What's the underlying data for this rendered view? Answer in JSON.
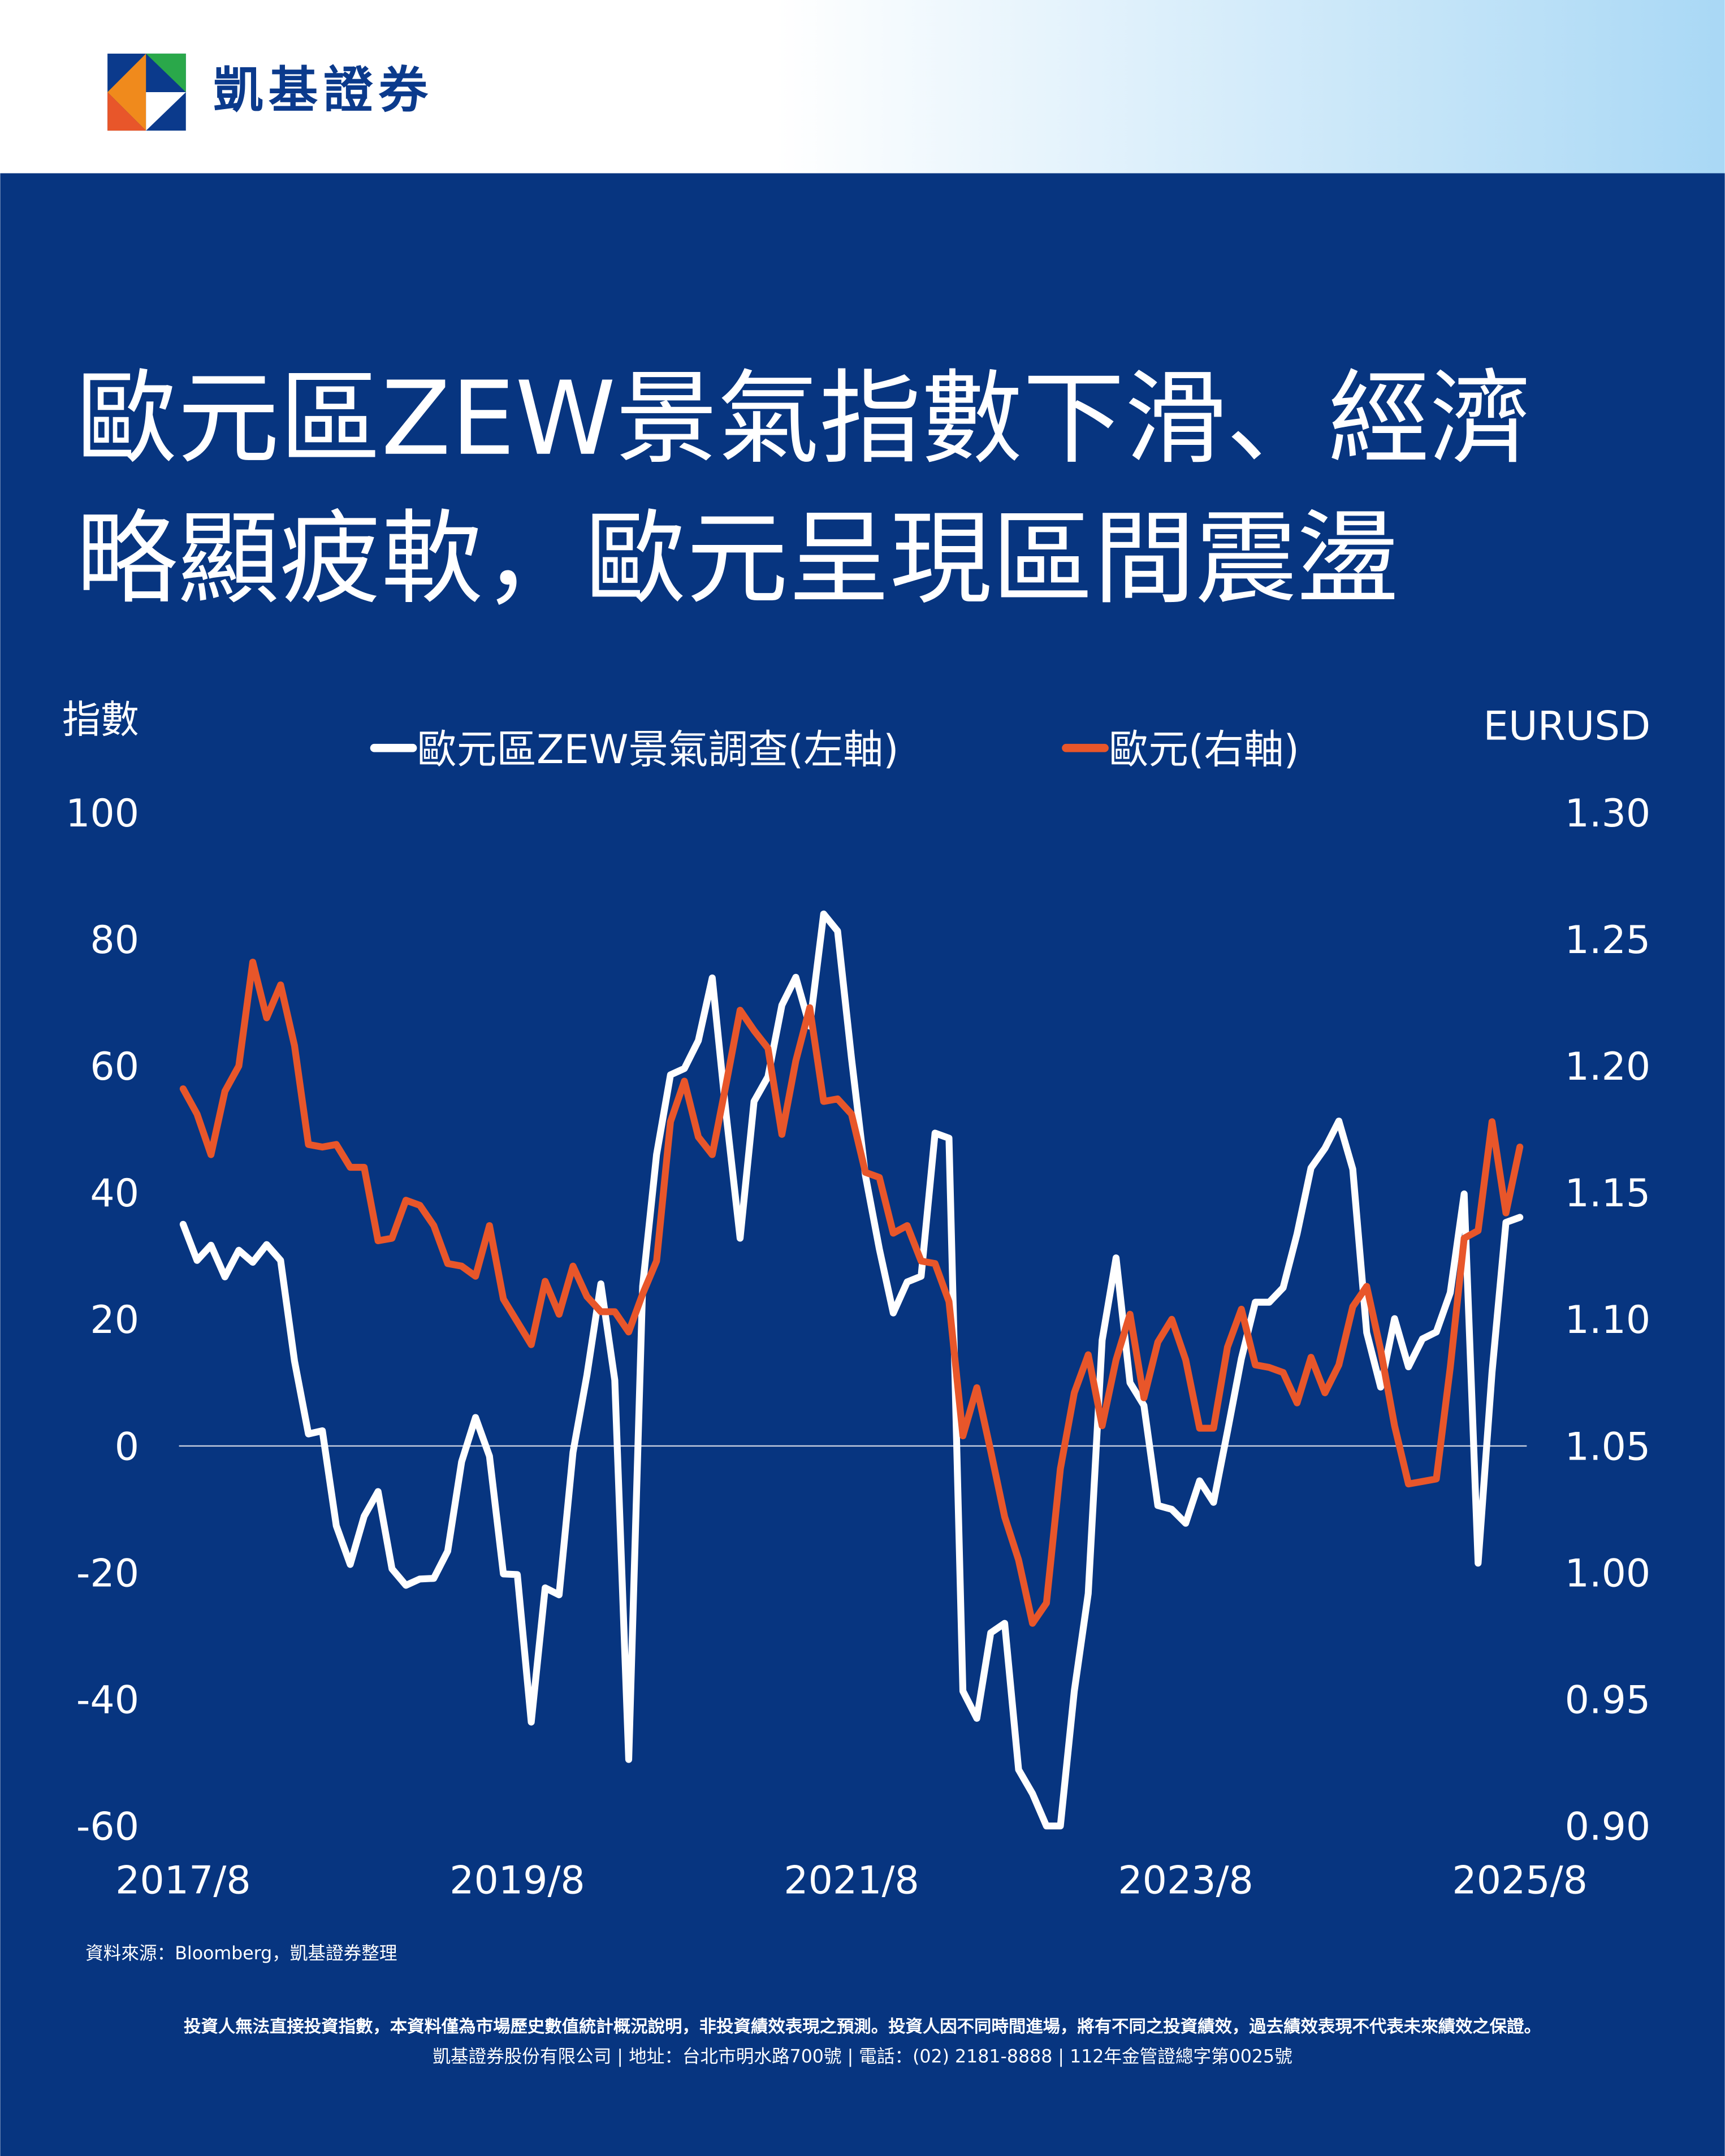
{
  "header": {
    "brand": "凱基證券"
  },
  "chart_data": {
    "type": "line",
    "title": [
      "歐元區ZEW景氣指數下滑、經濟",
      "略顯疲軟，歐元呈現區間震盪"
    ],
    "ylabel": "指數",
    "y2label": "EURUSD",
    "categories": [
      "2017/8",
      null,
      null,
      null,
      null,
      null,
      null,
      null,
      null,
      null,
      null,
      null,
      null,
      null,
      null,
      null,
      null,
      null,
      null,
      null,
      null,
      null,
      null,
      null,
      "2019/8",
      null,
      null,
      null,
      null,
      null,
      null,
      null,
      null,
      null,
      null,
      null,
      null,
      null,
      null,
      null,
      null,
      null,
      null,
      null,
      null,
      null,
      null,
      null,
      "2021/8",
      null,
      null,
      null,
      null,
      null,
      null,
      null,
      null,
      null,
      null,
      null,
      null,
      null,
      null,
      null,
      null,
      null,
      null,
      null,
      null,
      null,
      null,
      null,
      "2023/8",
      null,
      null,
      null,
      null,
      null,
      null,
      null,
      null,
      null,
      null,
      null,
      null,
      null,
      null,
      null,
      null,
      null,
      null,
      null,
      null,
      null,
      null,
      null,
      "2025/8"
    ],
    "series": [
      {
        "name": "歐元區ZEW景氣調查(左軸)",
        "color": "#ffffff",
        "axis": "y",
        "values": [
          35,
          29.3,
          31.7,
          26.7,
          30.9,
          29.0,
          31.8,
          29.3,
          13.4,
          1.9,
          2.4,
          -12.6,
          -18.7,
          -11.1,
          -7.2,
          -19.4,
          -22.0,
          -21.0,
          -20.9,
          -16.6,
          -2.5,
          4.5,
          -1.6,
          -20.2,
          -20.3,
          -43.6,
          -22.4,
          -23.5,
          -1.0,
          11.2,
          25.6,
          10.4,
          -49.5,
          25.2,
          46.0,
          58.6,
          59.6,
          64.0,
          73.9,
          52.3,
          32.8,
          54.4,
          58.3,
          69.6,
          74.0,
          66.3,
          84.0,
          81.3,
          61.2,
          42.7,
          31.1,
          21.0,
          25.9,
          26.8,
          49.4,
          48.6,
          -38.7,
          -43.0,
          -29.5,
          -28.0,
          -51.1,
          -54.9,
          -60,
          -60,
          -38.7,
          -23.3,
          16.7,
          29.7,
          10.0,
          6.4,
          -9.4,
          -10.0,
          -12.2,
          -5.5,
          -8.9,
          2.3,
          13.8,
          22.7,
          22.7,
          25.0,
          33.5,
          43.9,
          47.0,
          51.3,
          43.7,
          17.9,
          9.3,
          20.1,
          12.5,
          16.9,
          18.0,
          24.2,
          39.8,
          -18.5,
          11.6,
          35.3,
          36.1
        ]
      },
      {
        "name": "歐元(右軸)",
        "color": "#e8562a",
        "axis": "y2",
        "values": [
          1.191,
          1.181,
          1.165,
          1.19,
          1.2,
          1.241,
          1.219,
          1.232,
          1.208,
          1.169,
          1.168,
          1.169,
          1.16,
          1.16,
          1.131,
          1.132,
          1.147,
          1.145,
          1.137,
          1.122,
          1.121,
          1.117,
          1.137,
          1.108,
          1.099,
          1.09,
          1.115,
          1.102,
          1.121,
          1.109,
          1.103,
          1.103,
          1.095,
          1.11,
          1.123,
          1.178,
          1.194,
          1.172,
          1.165,
          1.193,
          1.222,
          1.214,
          1.207,
          1.173,
          1.202,
          1.223,
          1.186,
          1.187,
          1.181,
          1.158,
          1.156,
          1.134,
          1.137,
          1.123,
          1.122,
          1.107,
          1.054,
          1.073,
          1.048,
          1.022,
          1.005,
          0.98,
          0.988,
          1.041,
          1.071,
          1.086,
          1.058,
          1.084,
          1.102,
          1.069,
          1.091,
          1.1,
          1.084,
          1.057,
          1.057,
          1.089,
          1.104,
          1.082,
          1.081,
          1.079,
          1.067,
          1.085,
          1.071,
          1.082,
          1.105,
          1.113,
          1.088,
          1.058,
          1.035,
          1.036,
          1.037,
          1.081,
          1.132,
          1.135,
          1.178,
          1.142,
          1.168
        ]
      }
    ],
    "ylim": [
      -60,
      100
    ],
    "yticks": [
      100,
      80,
      60,
      40,
      20,
      0,
      -20,
      -40,
      -60
    ],
    "y2lim": [
      0.9,
      1.3
    ],
    "y2ticks": [
      {
        "value": 1.3,
        "label": "1.30"
      },
      {
        "value": 1.25,
        "label": "1.25"
      },
      {
        "value": 1.2,
        "label": "1.20"
      },
      {
        "value": 1.15,
        "label": "1.15"
      },
      {
        "value": 1.1,
        "label": "1.10"
      },
      {
        "value": 1.05,
        "label": "1.05"
      },
      {
        "value": 1.0,
        "label": "1.00"
      },
      {
        "value": 0.95,
        "label": "0.95"
      },
      {
        "value": 0.9,
        "label": "0.90"
      }
    ],
    "zero_line": true,
    "legend": "top"
  },
  "source": "資料來源：Bloomberg，凱基證券整理",
  "footer": {
    "disclaimer": "投資人無法直接投資指數，本資料僅為市場歷史數值統計概況說明，非投資績效表現之預測。投資人因不同時間進場，將有不同之投資績效，過去績效表現不代表未來績效之保證。",
    "company": "凱基證券股份有限公司 | 地址：台北市明水路700號 | 電話：(02) 2181-8888 | 112年金管證總字第0025號"
  }
}
